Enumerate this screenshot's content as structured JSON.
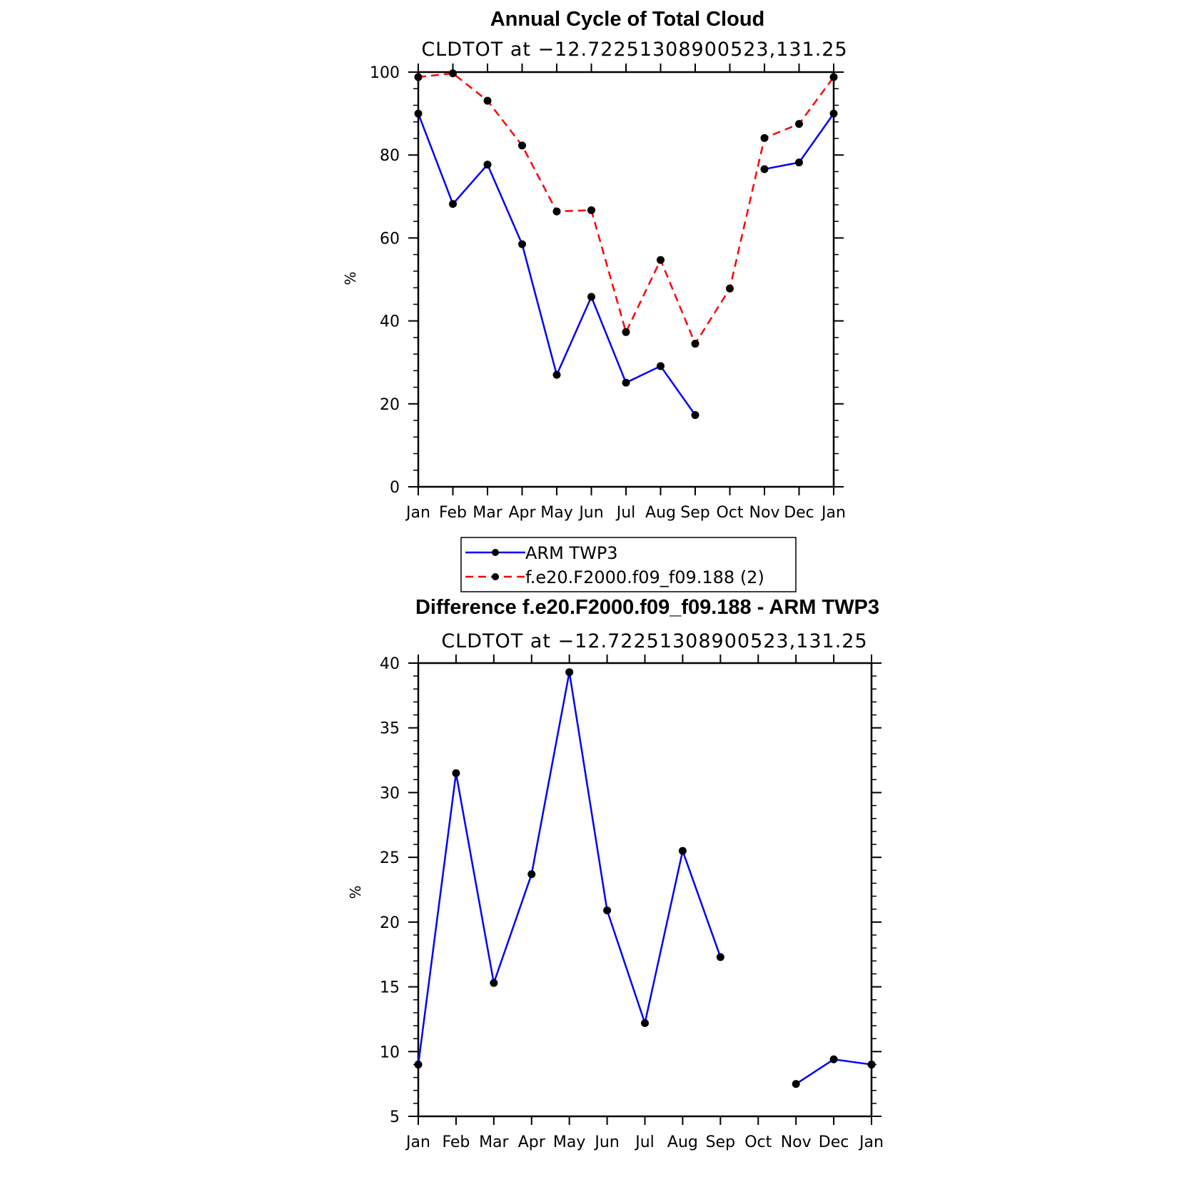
{
  "chart_data": [
    {
      "type": "line",
      "title": "Annual Cycle of Total Cloud",
      "subtitle": "CLDTOT at −12.72251308900523,131.25",
      "xlabel": "",
      "ylabel": "%",
      "categories": [
        "Jan",
        "Feb",
        "Mar",
        "Apr",
        "May",
        "Jun",
        "Jul",
        "Aug",
        "Sep",
        "Oct",
        "Nov",
        "Dec",
        "Jan"
      ],
      "ylim": [
        0,
        100
      ],
      "yticks": [
        0,
        20,
        40,
        60,
        80,
        100
      ],
      "grid": false,
      "series": [
        {
          "name": "ARM TWP3",
          "color": "#0000ff",
          "dash": "solid",
          "values": [
            90,
            68.2,
            77.7,
            58.5,
            27.0,
            45.8,
            25.1,
            29.1,
            17.3,
            null,
            76.6,
            78.2,
            90
          ]
        },
        {
          "name": "f.e20.F2000.f09_f09.188 (2)",
          "color": "#ff0000",
          "dash": "dashed",
          "values": [
            98.8,
            99.7,
            93.1,
            82.3,
            66.4,
            66.7,
            37.3,
            54.7,
            34.5,
            47.8,
            84.1,
            87.5,
            98.8
          ]
        }
      ],
      "legend": {
        "position": "bottom-center"
      }
    },
    {
      "type": "line",
      "title": "Difference f.e20.F2000.f09_f09.188 - ARM TWP3",
      "subtitle": "CLDTOT at −12.72251308900523,131.25",
      "xlabel": "",
      "ylabel": "%",
      "categories": [
        "Jan",
        "Feb",
        "Mar",
        "Apr",
        "May",
        "Jun",
        "Jul",
        "Aug",
        "Sep",
        "Oct",
        "Nov",
        "Dec",
        "Jan"
      ],
      "ylim": [
        5,
        40
      ],
      "yticks": [
        5,
        10,
        15,
        20,
        25,
        30,
        35,
        40
      ],
      "grid": false,
      "series": [
        {
          "name": "Difference",
          "color": "#0000ff",
          "dash": "solid",
          "values": [
            9.0,
            31.5,
            15.3,
            23.7,
            39.3,
            20.9,
            12.2,
            25.5,
            17.3,
            null,
            7.5,
            9.4,
            9.0
          ]
        }
      ]
    }
  ]
}
